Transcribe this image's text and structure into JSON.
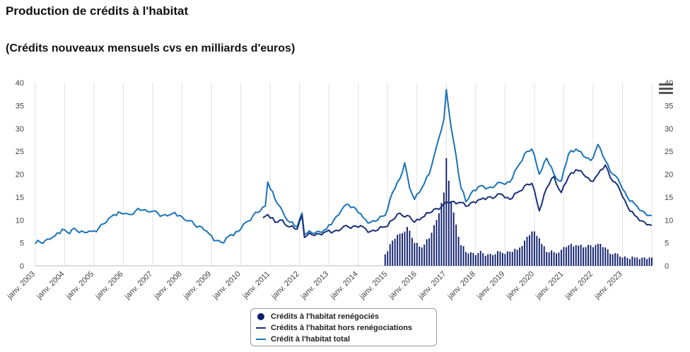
{
  "header": {
    "title": "Production de crédits à l'habitat",
    "subtitle": "(Crédits nouveaux mensuels cvs en milliards d'euros)"
  },
  "colors": {
    "total": "#1a73b8",
    "hors": "#1a2f7a",
    "reneg": "#0f1f6b"
  },
  "chart_data": {
    "type": "line",
    "x_axis_labels": [
      "janv. 2003",
      "janv. 2004",
      "janv. 2005",
      "janv. 2006",
      "janv. 2007",
      "janv. 2008",
      "janv. 2009",
      "janv. 2010",
      "janv. 2011",
      "janv. 2012",
      "janv. 2013",
      "janv. 2014",
      "janv. 2015",
      "janv. 2016",
      "janv. 2017",
      "janv. 2018",
      "janv. 2019",
      "janv. 2020",
      "janv. 2021",
      "janv. 2022",
      "janv. 2023"
    ],
    "y_ticks": [
      "0",
      "5",
      "10",
      "15",
      "20",
      "25",
      "30",
      "35",
      "40"
    ],
    "ylim": [
      0,
      40
    ],
    "x_start": "2003-01",
    "grid": true,
    "legend_position": "bottom",
    "series": [
      {
        "name": "Crédit à l'habitat total",
        "type": "line",
        "anchors": [
          [
            "2003-01",
            4.8
          ],
          [
            "2003-05",
            5.5
          ],
          [
            "2003-09",
            6.5
          ],
          [
            "2003-12",
            8
          ],
          [
            "2004-03",
            7
          ],
          [
            "2004-05",
            8.2
          ],
          [
            "2004-09",
            7.3
          ],
          [
            "2004-12",
            7.5
          ],
          [
            "2005-03",
            8.3
          ],
          [
            "2005-06",
            9.5
          ],
          [
            "2005-09",
            11.2
          ],
          [
            "2005-12",
            11.5
          ],
          [
            "2006-03",
            11.3
          ],
          [
            "2006-06",
            12
          ],
          [
            "2006-09",
            12.2
          ],
          [
            "2006-12",
            11.8
          ],
          [
            "2007-02",
            12
          ],
          [
            "2007-04",
            10.8
          ],
          [
            "2007-06",
            11.2
          ],
          [
            "2007-09",
            11.4
          ],
          [
            "2007-12",
            11
          ],
          [
            "2008-03",
            9.8
          ],
          [
            "2008-06",
            9
          ],
          [
            "2008-09",
            8.5
          ],
          [
            "2008-12",
            7
          ],
          [
            "2009-03",
            5.5
          ],
          [
            "2009-06",
            5
          ],
          [
            "2009-09",
            6.8
          ],
          [
            "2009-12",
            7.5
          ],
          [
            "2010-03",
            9.5
          ],
          [
            "2010-06",
            11
          ],
          [
            "2010-09",
            12
          ],
          [
            "2010-11",
            13
          ],
          [
            "2010-12",
            18.3
          ],
          [
            "2011-03",
            14.5
          ],
          [
            "2011-06",
            12
          ],
          [
            "2011-09",
            9.5
          ],
          [
            "2011-12",
            8.5
          ],
          [
            "2012-02",
            11.5
          ],
          [
            "2012-03",
            6.8
          ],
          [
            "2012-06",
            7.2
          ],
          [
            "2012-09",
            7.5
          ],
          [
            "2012-12",
            8
          ],
          [
            "2013-03",
            10
          ],
          [
            "2013-06",
            12
          ],
          [
            "2013-09",
            13.4
          ],
          [
            "2013-12",
            12.5
          ],
          [
            "2014-03",
            10.5
          ],
          [
            "2014-06",
            9.5
          ],
          [
            "2014-09",
            10
          ],
          [
            "2014-12",
            11
          ],
          [
            "2015-03",
            16
          ],
          [
            "2015-06",
            19
          ],
          [
            "2015-08",
            22.5
          ],
          [
            "2015-10",
            17
          ],
          [
            "2015-12",
            14.5
          ],
          [
            "2016-03",
            17
          ],
          [
            "2016-06",
            20
          ],
          [
            "2016-08",
            24
          ],
          [
            "2016-10",
            28
          ],
          [
            "2016-12",
            32
          ],
          [
            "2017-01",
            38.5
          ],
          [
            "2017-03",
            30
          ],
          [
            "2017-05",
            24
          ],
          [
            "2017-07",
            17
          ],
          [
            "2017-09",
            14
          ],
          [
            "2017-12",
            16.5
          ],
          [
            "2018-03",
            17.5
          ],
          [
            "2018-06",
            17
          ],
          [
            "2018-09",
            17.5
          ],
          [
            "2018-12",
            18
          ],
          [
            "2019-03",
            18.3
          ],
          [
            "2019-06",
            21.5
          ],
          [
            "2019-09",
            24.5
          ],
          [
            "2019-12",
            25.5
          ],
          [
            "2020-03",
            20
          ],
          [
            "2020-06",
            23.5
          ],
          [
            "2020-09",
            20
          ],
          [
            "2020-12",
            18.5
          ],
          [
            "2021-03",
            24.5
          ],
          [
            "2021-06",
            25.5
          ],
          [
            "2021-09",
            24
          ],
          [
            "2021-12",
            23
          ],
          [
            "2022-03",
            26.5
          ],
          [
            "2022-06",
            23
          ],
          [
            "2022-09",
            20
          ],
          [
            "2022-12",
            18
          ],
          [
            "2023-03",
            15
          ],
          [
            "2023-06",
            13.5
          ],
          [
            "2023-09",
            12
          ],
          [
            "2023-12",
            11
          ],
          [
            "2024-01",
            11
          ]
        ]
      },
      {
        "name": "Crédits à l'habitat hors renégociations",
        "type": "line",
        "anchors": [
          [
            "2010-10",
            10.5
          ],
          [
            "2010-12",
            11.2
          ],
          [
            "2011-03",
            9.5
          ],
          [
            "2011-06",
            10
          ],
          [
            "2011-09",
            8.5
          ],
          [
            "2011-12",
            8
          ],
          [
            "2012-02",
            11
          ],
          [
            "2012-03",
            6.2
          ],
          [
            "2012-06",
            6.8
          ],
          [
            "2012-09",
            7
          ],
          [
            "2012-12",
            7.5
          ],
          [
            "2013-03",
            7.5
          ],
          [
            "2013-06",
            8
          ],
          [
            "2013-09",
            8.5
          ],
          [
            "2013-12",
            8.7
          ],
          [
            "2014-03",
            8.5
          ],
          [
            "2014-06",
            7.5
          ],
          [
            "2014-09",
            7.8
          ],
          [
            "2014-12",
            8.5
          ],
          [
            "2015-03",
            10
          ],
          [
            "2015-06",
            11.5
          ],
          [
            "2015-09",
            11
          ],
          [
            "2015-12",
            9.5
          ],
          [
            "2016-03",
            10.5
          ],
          [
            "2016-06",
            11.5
          ],
          [
            "2016-09",
            12.5
          ],
          [
            "2016-12",
            13.5
          ],
          [
            "2017-03",
            14
          ],
          [
            "2017-06",
            13.8
          ],
          [
            "2017-09",
            13
          ],
          [
            "2017-12",
            14
          ],
          [
            "2018-03",
            14.5
          ],
          [
            "2018-06",
            15
          ],
          [
            "2018-09",
            15
          ],
          [
            "2018-12",
            15.5
          ],
          [
            "2019-03",
            14.5
          ],
          [
            "2019-06",
            16
          ],
          [
            "2019-09",
            17.5
          ],
          [
            "2019-12",
            18
          ],
          [
            "2020-03",
            12
          ],
          [
            "2020-06",
            17
          ],
          [
            "2020-09",
            19.5
          ],
          [
            "2020-12",
            16
          ],
          [
            "2021-03",
            19.5
          ],
          [
            "2021-06",
            21
          ],
          [
            "2021-09",
            20
          ],
          [
            "2021-12",
            18.5
          ],
          [
            "2022-03",
            20
          ],
          [
            "2022-06",
            22
          ],
          [
            "2022-09",
            18.5
          ],
          [
            "2022-12",
            16.5
          ],
          [
            "2023-03",
            13
          ],
          [
            "2023-06",
            11
          ],
          [
            "2023-09",
            9.8
          ],
          [
            "2023-12",
            9
          ],
          [
            "2024-01",
            8.8
          ]
        ]
      },
      {
        "name": "Crédits à l'habitat renégociés",
        "type": "bar",
        "anchors": [
          [
            "2014-12",
            2.5
          ],
          [
            "2015-03",
            5.5
          ],
          [
            "2015-06",
            7
          ],
          [
            "2015-09",
            8.5
          ],
          [
            "2015-12",
            5
          ],
          [
            "2016-03",
            4
          ],
          [
            "2016-06",
            6
          ],
          [
            "2016-09",
            10
          ],
          [
            "2016-12",
            16
          ],
          [
            "2017-01",
            23.5
          ],
          [
            "2017-03",
            14
          ],
          [
            "2017-05",
            9
          ],
          [
            "2017-07",
            4.5
          ],
          [
            "2017-09",
            3
          ],
          [
            "2017-12",
            2.8
          ],
          [
            "2018-06",
            2.5
          ],
          [
            "2018-12",
            2.8
          ],
          [
            "2019-06",
            3.5
          ],
          [
            "2019-09",
            5.5
          ],
          [
            "2019-12",
            7.5
          ],
          [
            "2020-03",
            6
          ],
          [
            "2020-06",
            3
          ],
          [
            "2020-09",
            3
          ],
          [
            "2020-12",
            3.5
          ],
          [
            "2021-03",
            4.5
          ],
          [
            "2021-06",
            4.5
          ],
          [
            "2021-09",
            4
          ],
          [
            "2021-12",
            4.5
          ],
          [
            "2022-03",
            4.8
          ],
          [
            "2022-06",
            4
          ],
          [
            "2022-09",
            2.5
          ],
          [
            "2022-12",
            2
          ],
          [
            "2023-06",
            1.8
          ],
          [
            "2023-12",
            1.8
          ],
          [
            "2024-01",
            1.8
          ]
        ]
      }
    ]
  }
}
